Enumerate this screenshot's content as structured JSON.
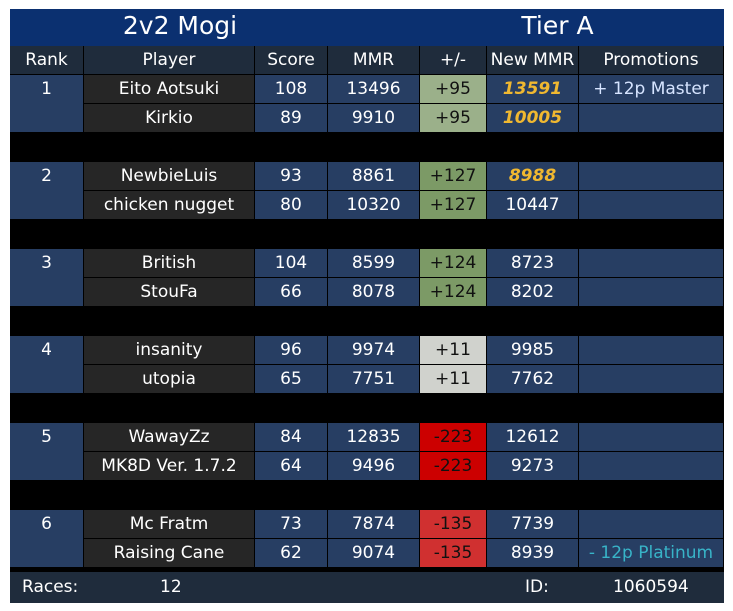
{
  "title_left": "2v2 Mogi",
  "title_right": "Tier A",
  "headers": [
    "Rank",
    "Player",
    "Score",
    "MMR",
    "+/-",
    "New MMR",
    "Promotions"
  ],
  "teams": [
    {
      "rank": "1",
      "players": [
        {
          "name": "Eito Aotsuki",
          "score": "108",
          "mmr": "13496",
          "delta": "+95",
          "new_mmr": "13591",
          "promotion": "+ 12p Master"
        },
        {
          "name": "Kirkio",
          "score": "89",
          "mmr": "9910",
          "delta": "+95",
          "new_mmr": "10005",
          "promotion": ""
        }
      ]
    },
    {
      "rank": "2",
      "players": [
        {
          "name": "NewbieLuis",
          "score": "93",
          "mmr": "8861",
          "delta": "+127",
          "new_mmr": "8988",
          "promotion": ""
        },
        {
          "name": "chicken nugget",
          "score": "80",
          "mmr": "10320",
          "delta": "+127",
          "new_mmr": "10447",
          "promotion": ""
        }
      ]
    },
    {
      "rank": "3",
      "players": [
        {
          "name": "British",
          "score": "104",
          "mmr": "8599",
          "delta": "+124",
          "new_mmr": "8723",
          "promotion": ""
        },
        {
          "name": "StouFa",
          "score": "66",
          "mmr": "8078",
          "delta": "+124",
          "new_mmr": "8202",
          "promotion": ""
        }
      ]
    },
    {
      "rank": "4",
      "players": [
        {
          "name": "insanity",
          "score": "96",
          "mmr": "9974",
          "delta": "+11",
          "new_mmr": "9985",
          "promotion": ""
        },
        {
          "name": "utopia",
          "score": "65",
          "mmr": "7751",
          "delta": "+11",
          "new_mmr": "7762",
          "promotion": ""
        }
      ]
    },
    {
      "rank": "5",
      "players": [
        {
          "name": "WawayZz",
          "score": "84",
          "mmr": "12835",
          "delta": "-223",
          "new_mmr": "12612",
          "promotion": ""
        },
        {
          "name": "MK8D Ver. 1.7.2",
          "score": "64",
          "mmr": "9496",
          "delta": "-223",
          "new_mmr": "9273",
          "promotion": ""
        }
      ]
    },
    {
      "rank": "6",
      "players": [
        {
          "name": "Mc Fratm",
          "score": "73",
          "mmr": "7874",
          "delta": "-135",
          "new_mmr": "7739",
          "promotion": ""
        },
        {
          "name": "Raising Cane",
          "score": "62",
          "mmr": "9074",
          "delta": "-135",
          "new_mmr": "8939",
          "promotion": "- 12p Platinum"
        }
      ]
    }
  ],
  "footer": {
    "races_label": "Races:",
    "races_value": "12",
    "id_label": "ID:",
    "id_value": "1060594"
  }
}
